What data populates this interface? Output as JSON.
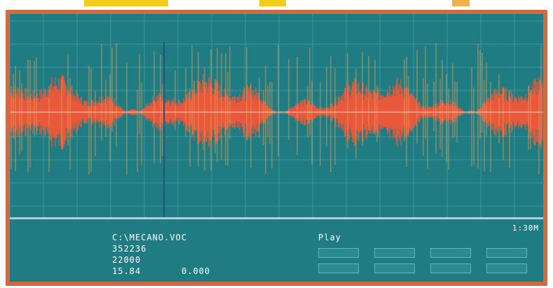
{
  "info_panel": {
    "rows": [
      {
        "key": "",
        "value": "C:\\MECANO.VOC",
        "extra": ""
      },
      {
        "key": "",
        "value": "352236",
        "extra": ""
      },
      {
        "key": "",
        "value": "22000",
        "extra": ""
      },
      {
        "key": "",
        "value": "15.84",
        "extra": "0.000"
      }
    ]
  },
  "timeline": {
    "time_label": "1:30M"
  },
  "controls": {
    "items": [
      {
        "label": "Play"
      },
      {
        "label": ""
      },
      {
        "label": ""
      },
      {
        "label": ""
      }
    ]
  },
  "colors": {
    "screen_bg": "#1f7c82",
    "frame": "#d06a44",
    "waveform": "#e8583a",
    "waveform_spike": "#e69a52",
    "grid": "#3f989e"
  }
}
